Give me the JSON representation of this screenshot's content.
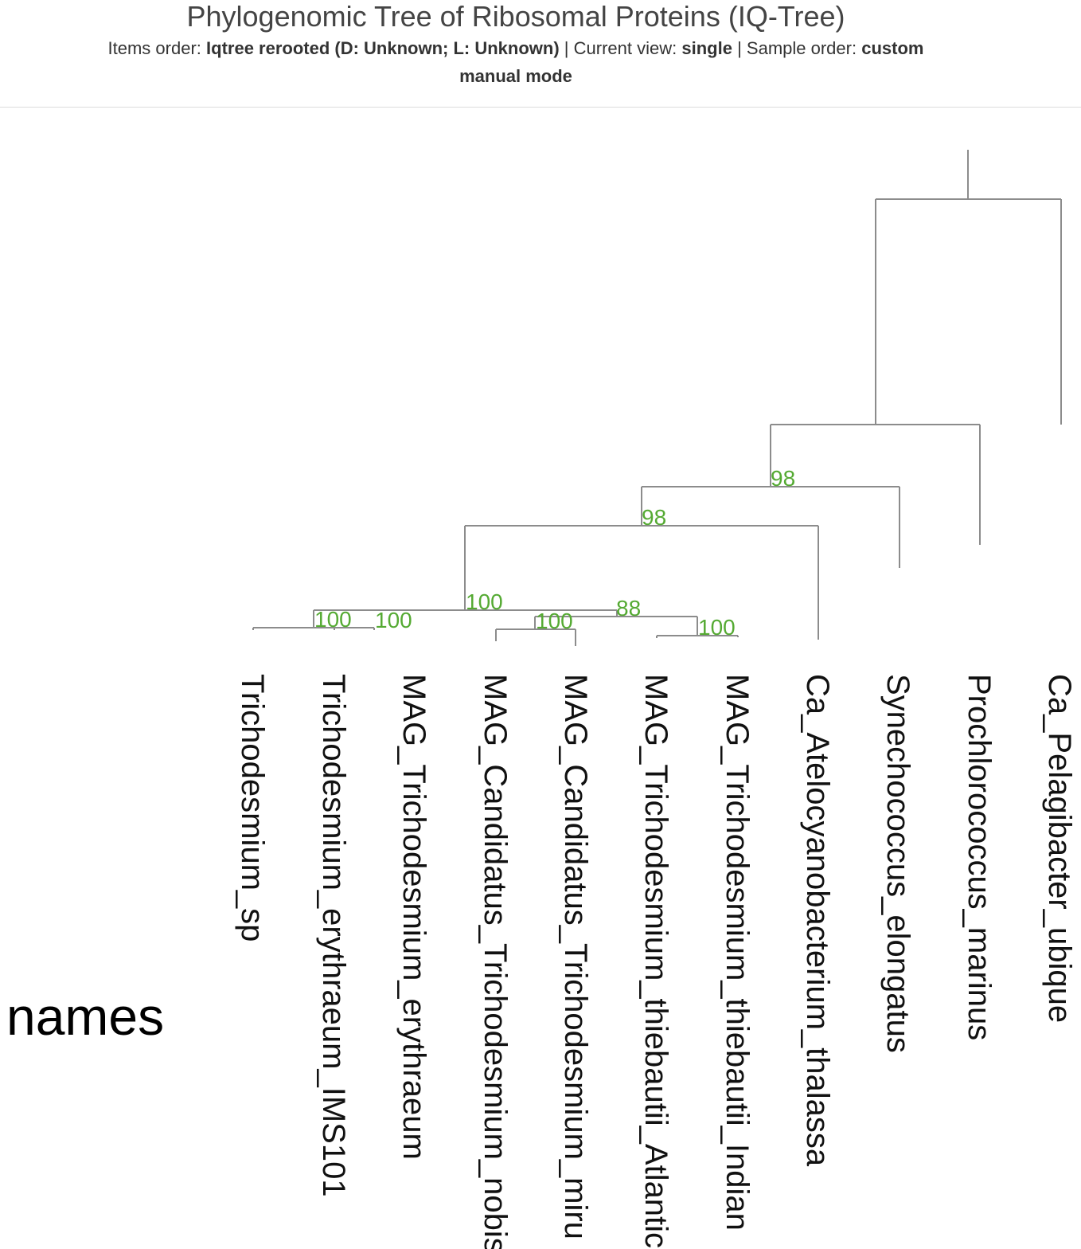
{
  "header": {
    "title": "Phylogenomic Tree of Ribosomal Proteins (IQ-Tree)",
    "items_order_label": "Items order:",
    "items_order_value": "Iqtree rerooted (D: Unknown; L: Unknown)",
    "current_view_label": "Current view:",
    "current_view_value": "single",
    "sample_order_label": "Sample order:",
    "sample_order_value": "custom",
    "mode": "manual mode",
    "separator": "|"
  },
  "tree": {
    "leaves": [
      "Trichodesmium_sp",
      "Trichodesmium_erythraeum_IMS101",
      "MAG_Trichodesmium_erythraeum",
      "MAG_Candidatus_Trichodesmium_nobis",
      "MAG_Candidatus_Trichodesmium_miru",
      "MAG_Trichodesmium_thiebautii_Atlantic",
      "MAG_Trichodesmium_thiebautii_Indian",
      "Ca_Atelocyanobacterium_thalassa",
      "Synechococcus_elongatus",
      "Prochlorococcus_marinus",
      "Ca_Pelagibacter_ubique"
    ],
    "support_values": [
      "98",
      "98",
      "100",
      "88",
      "100",
      "100",
      "100",
      "100"
    ],
    "branch_color": "#8c8c8c",
    "support_color": "#55aa33"
  },
  "layer": {
    "name": "names"
  }
}
